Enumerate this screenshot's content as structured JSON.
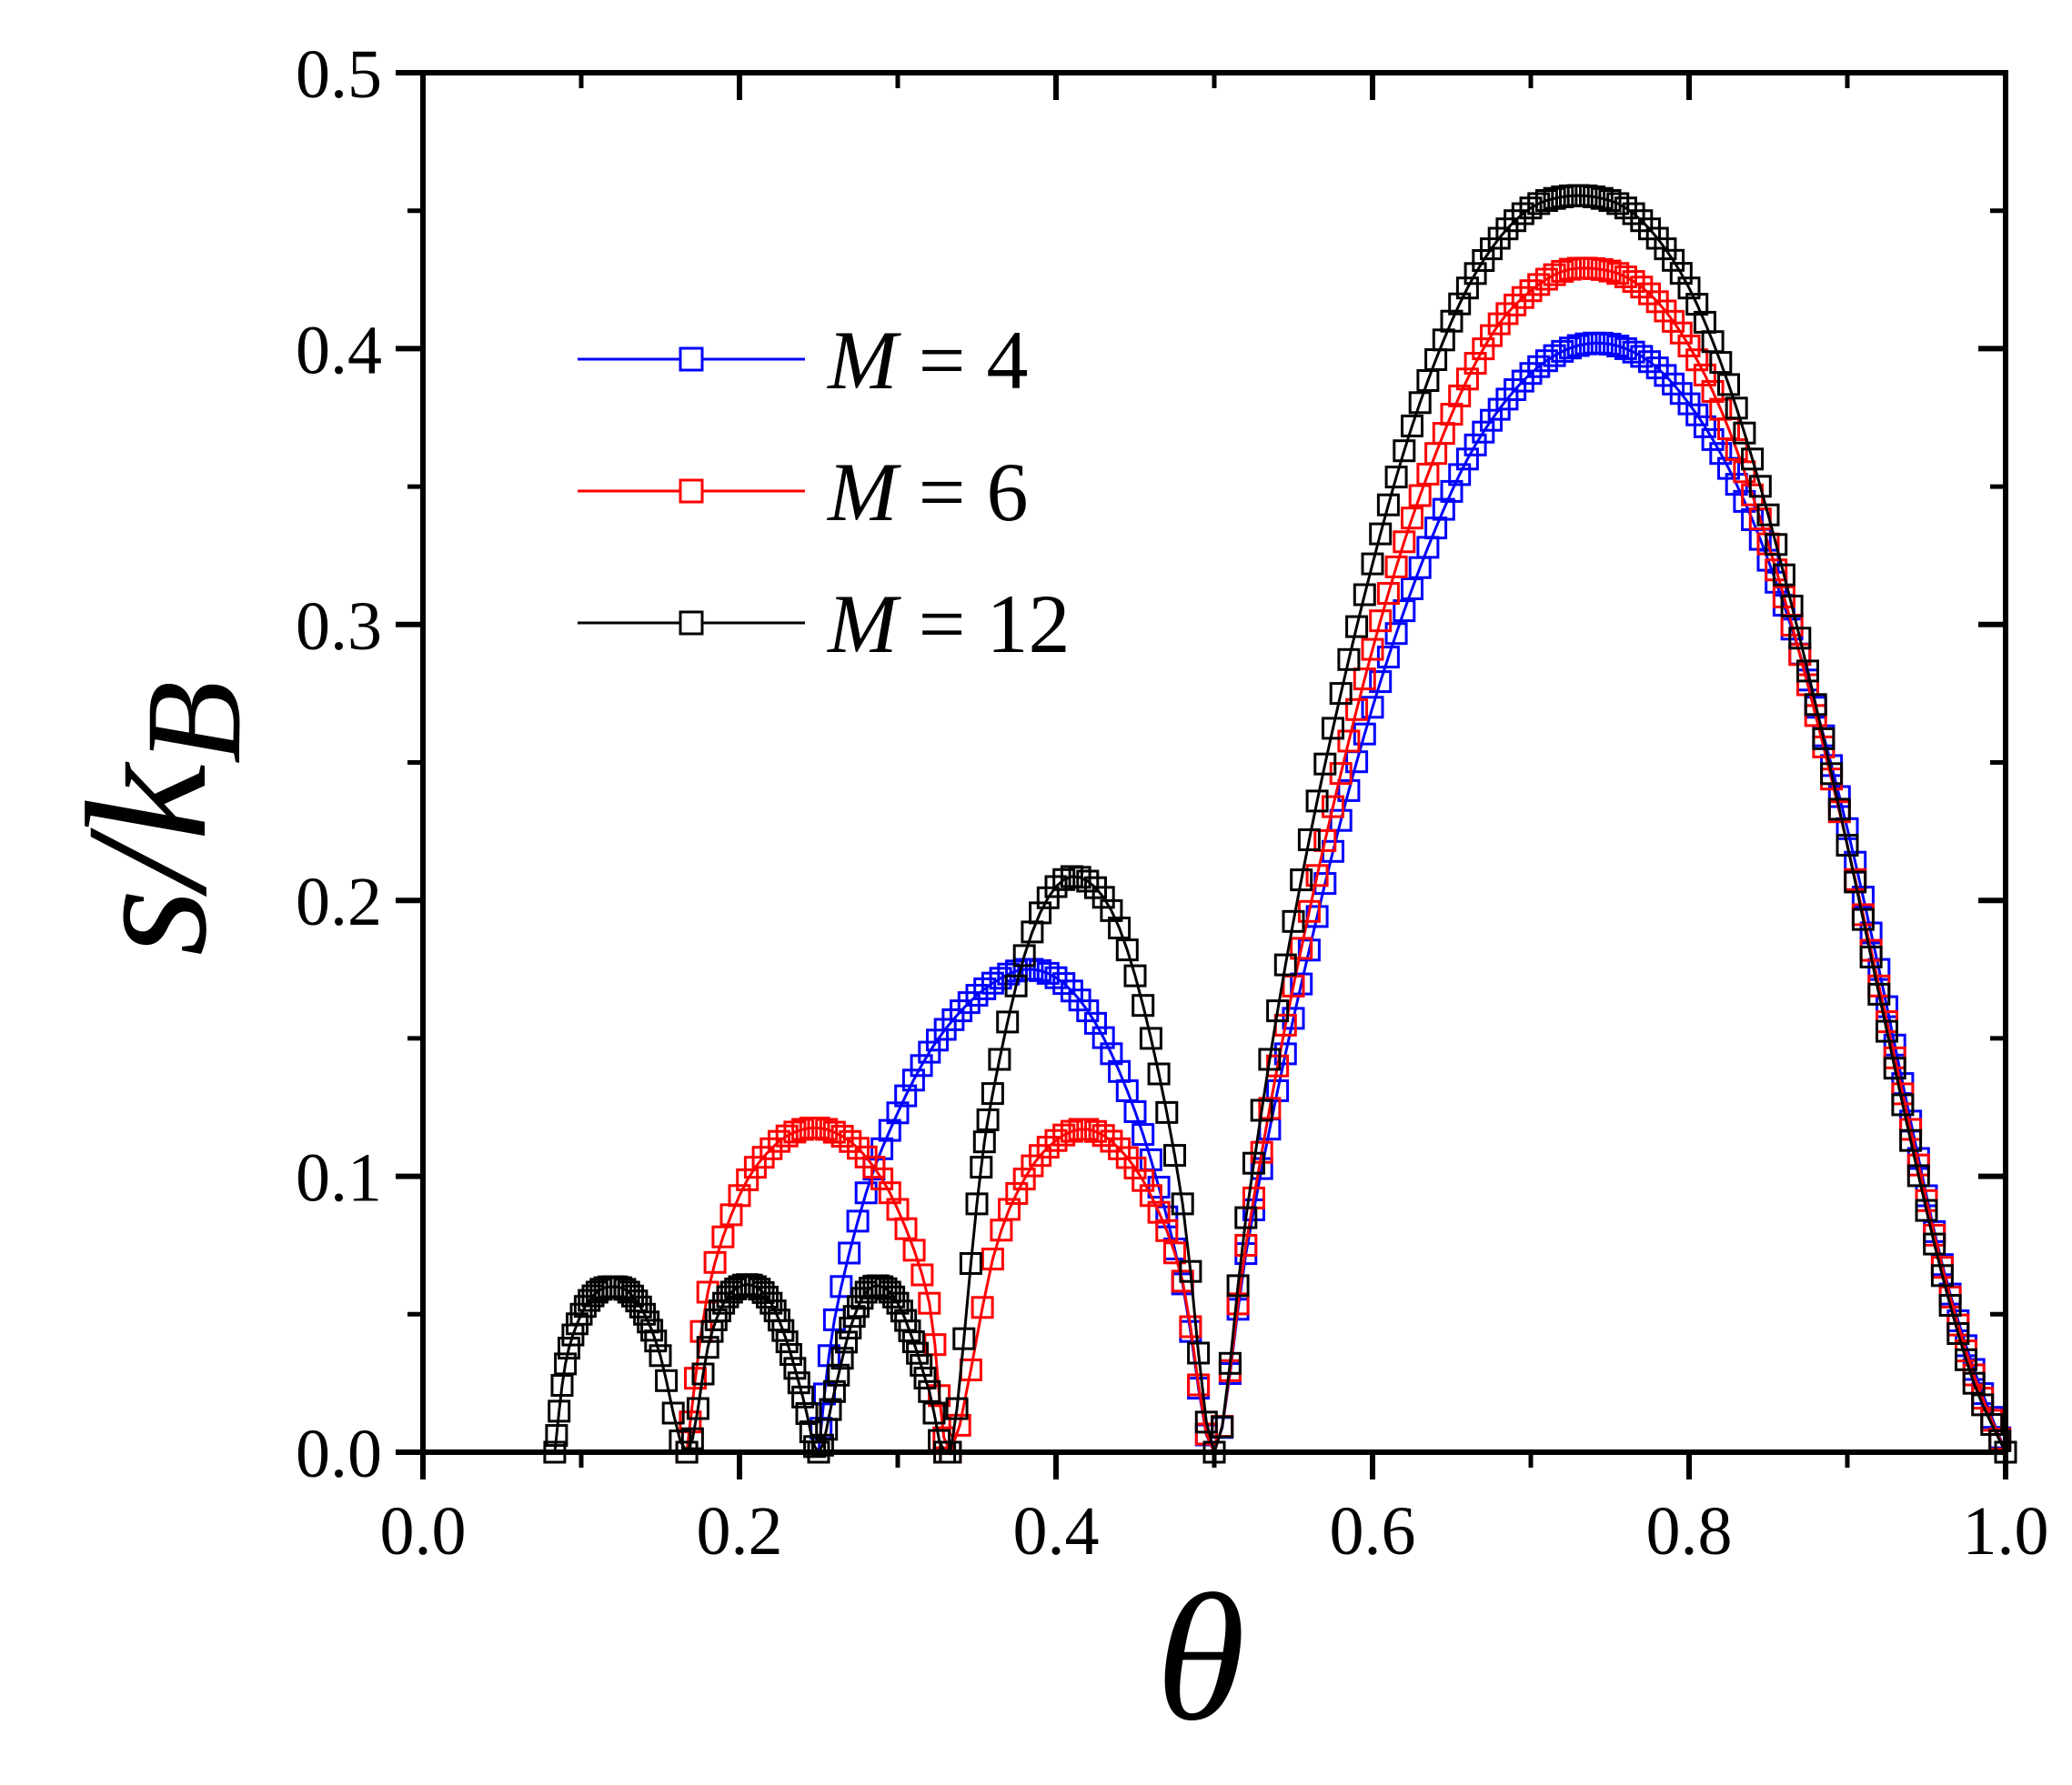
{
  "chart_data": {
    "type": "line",
    "title": "",
    "xlabel": "θ",
    "ylabel": {
      "main": "s/k",
      "sub": "B"
    },
    "xlim": [
      0.0,
      1.0
    ],
    "ylim": [
      0.0,
      0.5
    ],
    "x_ticks": [
      "0.0",
      "0.2",
      "0.4",
      "0.6",
      "0.8",
      "1.0"
    ],
    "y_ticks": [
      "0.0",
      "0.1",
      "0.2",
      "0.3",
      "0.4",
      "0.5"
    ],
    "x_tick_values": [
      0.0,
      0.2,
      0.4,
      0.6,
      0.8,
      1.0
    ],
    "y_tick_values": [
      0.0,
      0.1,
      0.2,
      0.3,
      0.4,
      0.5
    ],
    "legend_position": "upper-left",
    "marker": "open-square",
    "series": [
      {
        "name": "M = 4",
        "label_var": "M",
        "label_rest": " = 4",
        "color": "#0000ff",
        "x": [
          0.25,
          0.26,
          0.28,
          0.3,
          0.32,
          0.34,
          0.36,
          0.38,
          0.4,
          0.42,
          0.44,
          0.46,
          0.48,
          0.5,
          0.52,
          0.54,
          0.56,
          0.58,
          0.6,
          0.62,
          0.64,
          0.66,
          0.68,
          0.7,
          0.72,
          0.74,
          0.76,
          0.78,
          0.8,
          0.82,
          0.84,
          0.86,
          0.88,
          0.9,
          0.92,
          0.94,
          0.96,
          0.98,
          1.0
        ],
        "y": [
          0.0,
          0.048,
          0.094,
          0.123,
          0.145,
          0.16,
          0.17,
          0.175,
          0.172,
          0.16,
          0.138,
          0.106,
          0.061,
          0.0,
          0.072,
          0.131,
          0.182,
          0.229,
          0.27,
          0.305,
          0.335,
          0.36,
          0.378,
          0.391,
          0.399,
          0.402,
          0.4,
          0.393,
          0.38,
          0.362,
          0.338,
          0.307,
          0.27,
          0.226,
          0.175,
          0.12,
          0.068,
          0.03,
          0.0
        ]
      },
      {
        "name": "M = 6",
        "label_var": "M",
        "label_rest": " = 6",
        "color": "#ff0000",
        "x": [
          0.1667,
          0.18,
          0.2,
          0.22,
          0.24,
          0.26,
          0.28,
          0.3,
          0.32,
          0.3333,
          0.36,
          0.38,
          0.4,
          0.42,
          0.44,
          0.46,
          0.48,
          0.5,
          0.52,
          0.54,
          0.56,
          0.58,
          0.6,
          0.62,
          0.64,
          0.66,
          0.68,
          0.7,
          0.72,
          0.74,
          0.76,
          0.78,
          0.8,
          0.82,
          0.84,
          0.86,
          0.88,
          0.9,
          0.92,
          0.94,
          0.96,
          0.98,
          1.0
        ],
        "y": [
          0.0,
          0.058,
          0.093,
          0.11,
          0.117,
          0.116,
          0.107,
          0.088,
          0.054,
          0.0,
          0.07,
          0.099,
          0.113,
          0.117,
          0.11,
          0.093,
          0.062,
          0.0,
          0.075,
          0.14,
          0.196,
          0.246,
          0.291,
          0.33,
          0.362,
          0.389,
          0.409,
          0.421,
          0.428,
          0.429,
          0.426,
          0.417,
          0.401,
          0.378,
          0.347,
          0.31,
          0.267,
          0.22,
          0.169,
          0.117,
          0.067,
          0.028,
          0.0
        ]
      },
      {
        "name": "M = 12",
        "label_var": "M",
        "label_rest": " = 12",
        "color": "#000000",
        "x": [
          0.0833,
          0.09,
          0.1,
          0.11,
          0.12,
          0.13,
          0.14,
          0.15,
          0.1667,
          0.18,
          0.19,
          0.2,
          0.21,
          0.22,
          0.23,
          0.24,
          0.25,
          0.26,
          0.27,
          0.28,
          0.29,
          0.3,
          0.31,
          0.32,
          0.3333,
          0.35,
          0.36,
          0.38,
          0.4,
          0.42,
          0.44,
          0.46,
          0.48,
          0.5,
          0.52,
          0.54,
          0.56,
          0.58,
          0.6,
          0.62,
          0.64,
          0.66,
          0.68,
          0.7,
          0.72,
          0.74,
          0.76,
          0.78,
          0.8,
          0.82,
          0.84,
          0.86,
          0.88,
          0.9,
          0.92,
          0.94,
          0.96,
          0.98,
          1.0
        ],
        "y": [
          0.0,
          0.032,
          0.05,
          0.058,
          0.06,
          0.058,
          0.05,
          0.035,
          0.0,
          0.038,
          0.054,
          0.06,
          0.06,
          0.054,
          0.04,
          0.02,
          0.0,
          0.022,
          0.045,
          0.058,
          0.06,
          0.054,
          0.04,
          0.022,
          0.0,
          0.09,
          0.13,
          0.18,
          0.205,
          0.207,
          0.19,
          0.15,
          0.09,
          0.0,
          0.085,
          0.16,
          0.222,
          0.275,
          0.322,
          0.363,
          0.396,
          0.422,
          0.44,
          0.451,
          0.455,
          0.455,
          0.451,
          0.44,
          0.422,
          0.395,
          0.36,
          0.318,
          0.271,
          0.22,
          0.166,
          0.113,
          0.064,
          0.025,
          0.0
        ]
      }
    ]
  }
}
